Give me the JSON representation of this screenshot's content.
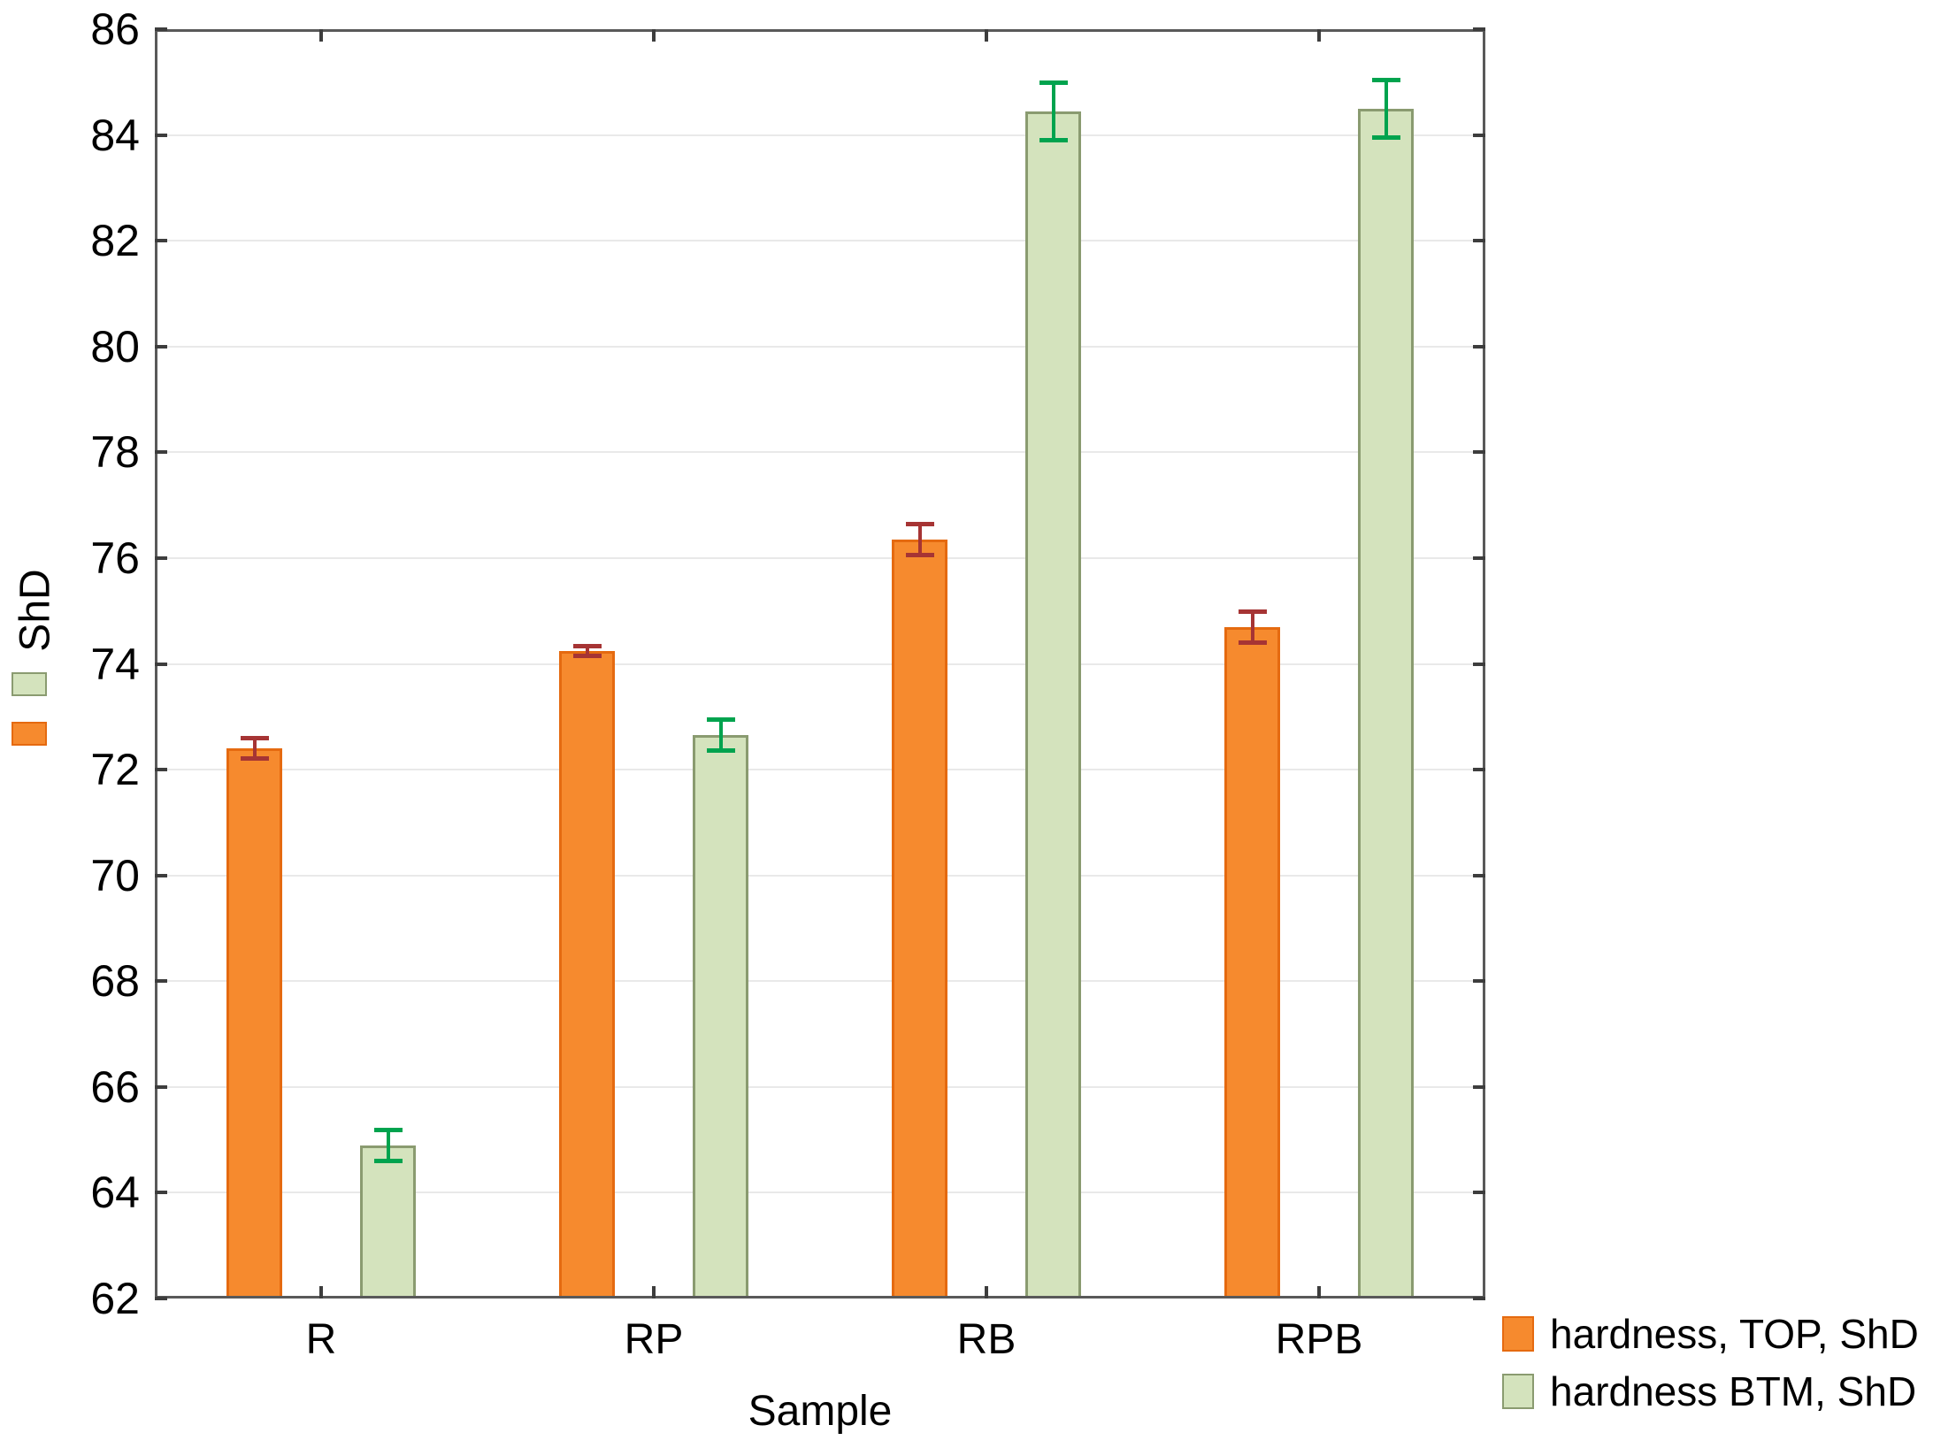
{
  "figure": {
    "y_axis_label": "ShD",
    "x_axis_label": "Sample",
    "legend": {
      "items": [
        {
          "label": "hardness, TOP, ShD",
          "swatch_fill": "#F68A2E",
          "swatch_border": "#E56A10"
        },
        {
          "label": "hardness BTM, ShD",
          "swatch_fill": "#D4E3BD",
          "swatch_border": "#8A9B70"
        }
      ]
    },
    "colors": {
      "frame": "#595959",
      "tick": "#3d3d3d",
      "gridline": "#e9e9e9",
      "background": "#ffffff",
      "text": "#000000"
    }
  },
  "chart_data": {
    "type": "bar",
    "title": "",
    "xlabel": "Sample",
    "ylabel": "ShD",
    "categories": [
      "R",
      "RP",
      "RB",
      "RPB"
    ],
    "series": [
      {
        "name": "hardness, TOP, ShD",
        "values": [
          72.4,
          74.25,
          76.35,
          74.7
        ],
        "errors": [
          0.2,
          0.1,
          0.3,
          0.3
        ],
        "fill": "#F68A2E",
        "border": "#E56A10",
        "error_color": "#A63434"
      },
      {
        "name": "hardness BTM, ShD",
        "values": [
          64.9,
          72.65,
          84.45,
          84.5
        ],
        "errors": [
          0.3,
          0.3,
          0.55,
          0.55
        ],
        "fill": "#D4E3BD",
        "border": "#8A9B70",
        "error_color": "#00A34E"
      }
    ],
    "ylim": [
      62,
      86
    ],
    "ytick_step": 2,
    "yticks": [
      62,
      64,
      66,
      68,
      70,
      72,
      74,
      76,
      78,
      80,
      82,
      84,
      86
    ],
    "grid": "horizontal-major",
    "legend_position": "bottom-right-outside",
    "error_bars": true
  }
}
